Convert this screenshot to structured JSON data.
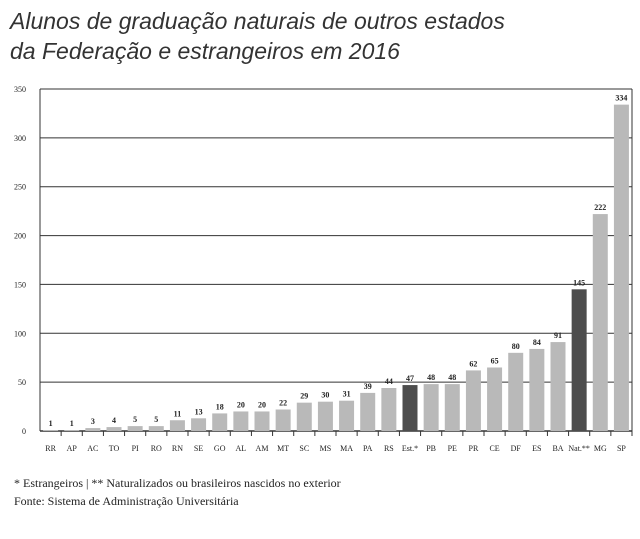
{
  "chart_data": {
    "type": "bar",
    "title_line1": "Alunos de graduação naturais de outros estados",
    "title_line2": "da Federação e estrangeiros em 2016",
    "categories": [
      "RR",
      "AP",
      "AC",
      "TO",
      "PI",
      "RO",
      "RN",
      "SE",
      "GO",
      "AL",
      "AM",
      "MT",
      "SC",
      "MS",
      "MA",
      "PA",
      "RS",
      "Est.*",
      "PB",
      "PE",
      "PR",
      "CE",
      "DF",
      "ES",
      "BA",
      "Nat.**",
      "MG",
      "SP"
    ],
    "values": [
      1,
      1,
      3,
      4,
      5,
      5,
      11,
      13,
      18,
      20,
      20,
      22,
      29,
      30,
      31,
      39,
      44,
      47,
      48,
      48,
      62,
      65,
      80,
      84,
      91,
      145,
      222,
      334
    ],
    "highlight": [
      "Est.*",
      "Nat.**"
    ],
    "ylim": [
      0,
      350
    ],
    "yticks": [
      0,
      50,
      100,
      150,
      200,
      250,
      300,
      350
    ],
    "grid": true,
    "colors": {
      "bar": "#b9b9b9",
      "highlight": "#4d4d4d",
      "grid": "#333333"
    }
  },
  "footnote1": "* Estrangeiros | ** Naturalizados ou brasileiros nascidos no exterior",
  "footnote2": "Fonte: Sistema de Administração Universitária"
}
